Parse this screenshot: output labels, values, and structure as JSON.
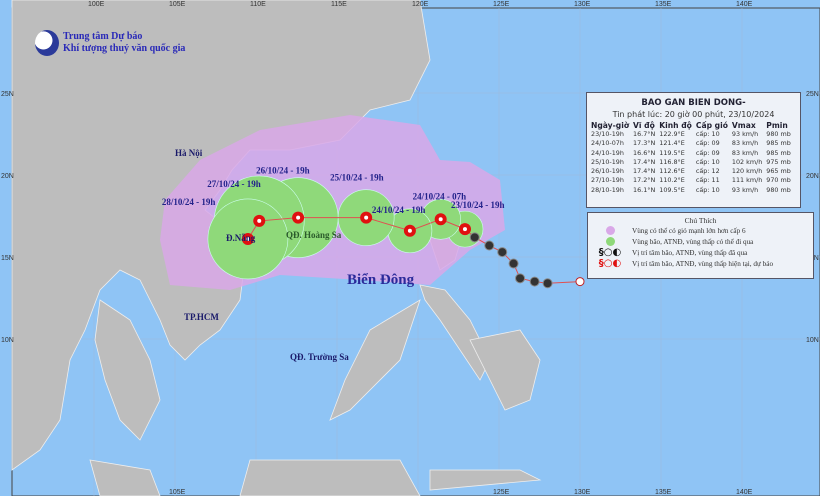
{
  "header": {
    "org_line1": "Trung tâm Dự báo",
    "org_line2": "Khí tượng thuỷ văn quốc gia"
  },
  "axes": {
    "lon_ticks": [
      "100E",
      "105E",
      "110E",
      "115E",
      "120E",
      "125E",
      "130E",
      "135E",
      "140E"
    ],
    "lat_ticks": [
      "25N",
      "20N",
      "15N",
      "10N"
    ],
    "bottom_ticks": [
      "105E",
      "125E",
      "130E",
      "135E",
      "140E"
    ]
  },
  "map_labels": {
    "sea": "Biển Đông",
    "hanoi": "Hà Nội",
    "danang": "Đ.Nẵng",
    "hcm": "TP.HCM",
    "hoangsa": "QĐ. Hoàng Sa",
    "truongsa": "QĐ. Trường Sa"
  },
  "info": {
    "title": "BAO GAN BIEN DONG-",
    "issued": "Tin phát lúc: 20 giờ 00 phút, 23/10/2024",
    "columns": [
      "Ngày-giờ",
      "Vĩ độ",
      "Kinh độ",
      "Cấp gió",
      "Vmax",
      "Pmin"
    ],
    "rows": [
      [
        "23/10-19h",
        "16.7°N",
        "122.9°E",
        "cấp: 10",
        "93 km/h",
        "980 mb"
      ],
      [
        "24/10-07h",
        "17.3°N",
        "121.4°E",
        "cấp: 09",
        "83 km/h",
        "985 mb"
      ],
      [
        "24/10-19h",
        "16.6°N",
        "119.5°E",
        "cấp: 09",
        "83 km/h",
        "985 mb"
      ],
      [
        "25/10-19h",
        "17.4°N",
        "116.8°E",
        "cấp: 10",
        "102 km/h",
        "975 mb"
      ],
      [
        "26/10-19h",
        "17.4°N",
        "112.6°E",
        "cấp: 12",
        "120 km/h",
        "965 mb"
      ],
      [
        "27/10-19h",
        "17.2°N",
        "110.2°E",
        "cấp: 11",
        "111 km/h",
        "970 mb"
      ],
      [
        "28/10-19h",
        "16.1°N",
        "109.5°E",
        "cấp: 10",
        "93 km/h",
        "980 mb"
      ]
    ]
  },
  "forecast": [
    {
      "label": "23/10/24 - 19h",
      "lat": 16.7,
      "lon": 122.9
    },
    {
      "label": "24/10/24 - 07h",
      "lat": 17.3,
      "lon": 121.4
    },
    {
      "label": "24/10/24 - 19h",
      "lat": 16.6,
      "lon": 119.5
    },
    {
      "label": "25/10/24 - 19h",
      "lat": 17.4,
      "lon": 116.8
    },
    {
      "label": "26/10/24 - 19h",
      "lat": 17.4,
      "lon": 112.6
    },
    {
      "label": "27/10/24 - 19h",
      "lat": 17.2,
      "lon": 110.2
    },
    {
      "label": "28/10/24 - 19h",
      "lat": 16.1,
      "lon": 109.5
    }
  ],
  "past_track": [
    [
      16.2,
      123.5
    ],
    [
      15.7,
      124.4
    ],
    [
      15.3,
      125.2
    ],
    [
      14.6,
      125.9
    ],
    [
      13.7,
      126.3
    ],
    [
      13.5,
      127.2
    ],
    [
      13.4,
      128.0
    ],
    [
      13.5,
      130.0
    ]
  ],
  "legend": {
    "title": "Chú Thích",
    "items": [
      "Vùng có thể có gió mạnh lớn hơn cấp 6",
      "Vùng bão, ATNĐ, vùng thấp có thể đi qua",
      "Vị trí tâm bão, ATNĐ, vùng thấp đã qua",
      "Vị trí tâm bão, ATNĐ, vùng thấp hiện tại, dự báo"
    ]
  },
  "colors": {
    "sea": "#8fc4f5",
    "land": "#bdbdbd",
    "wind_zone": "#d9a8e8",
    "storm_zone": "#8fd97a",
    "forecast_symbol": "#e01010",
    "past_symbol": "#333333"
  }
}
